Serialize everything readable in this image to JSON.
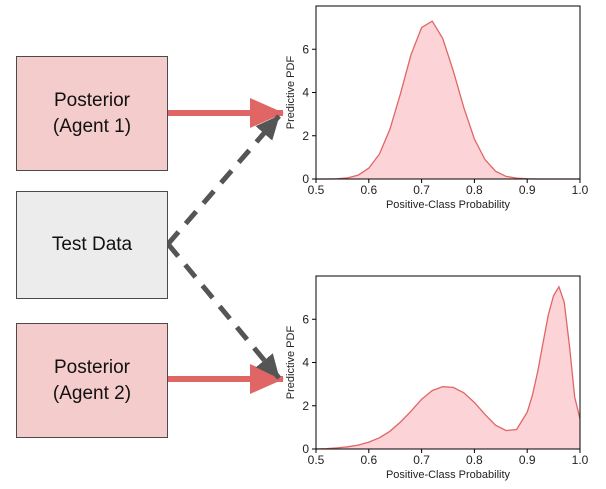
{
  "boxes": {
    "posterior1": {
      "line1": "Posterior",
      "line2": "(Agent 1)"
    },
    "test_data": {
      "label": "Test Data"
    },
    "posterior2": {
      "line1": "Posterior",
      "line2": "(Agent 2)"
    }
  },
  "colors": {
    "posterior_fill": "#f4cccc",
    "test_data_fill": "#ececec",
    "solid_arrow": "#e06666",
    "dashed_arrow": "#555555",
    "curve_line": "#e06666",
    "curve_fill": "#fcd3d6"
  },
  "chart_data": [
    {
      "type": "area",
      "xlabel": "Positive-Class Probability",
      "ylabel": "Predictive PDF",
      "xlim": [
        0.5,
        1.0
      ],
      "ylim": [
        0,
        8
      ],
      "xticks": [
        "0.5",
        "0.6",
        "0.7",
        "0.8",
        "0.9",
        "1.0"
      ],
      "yticks": [
        "0",
        "2",
        "4",
        "6"
      ],
      "grid": false,
      "series": [
        {
          "x": [
            0.5,
            0.52,
            0.54,
            0.56,
            0.58,
            0.6,
            0.62,
            0.64,
            0.66,
            0.68,
            0.7,
            0.72,
            0.74,
            0.76,
            0.78,
            0.8,
            0.82,
            0.84,
            0.86,
            0.88,
            0.9,
            0.92,
            0.94,
            0.96,
            0.98,
            1.0
          ],
          "y": [
            0.0,
            0.0,
            0.01,
            0.05,
            0.18,
            0.5,
            1.15,
            2.3,
            3.95,
            5.75,
            7.0,
            7.3,
            6.5,
            5.0,
            3.3,
            1.85,
            0.9,
            0.36,
            0.12,
            0.04,
            0.01,
            0.0,
            0.0,
            0.0,
            0.0,
            0.0
          ]
        }
      ]
    },
    {
      "type": "area",
      "xlabel": "Positive-Class Probability",
      "ylabel": "Predictive PDF",
      "xlim": [
        0.5,
        1.0
      ],
      "ylim": [
        0,
        8
      ],
      "xticks": [
        "0.5",
        "0.6",
        "0.7",
        "0.8",
        "0.9",
        "1.0"
      ],
      "yticks": [
        "0",
        "2",
        "4",
        "6"
      ],
      "grid": false,
      "series": [
        {
          "x": [
            0.5,
            0.52,
            0.54,
            0.56,
            0.58,
            0.6,
            0.62,
            0.64,
            0.66,
            0.68,
            0.7,
            0.72,
            0.74,
            0.76,
            0.78,
            0.8,
            0.82,
            0.84,
            0.86,
            0.88,
            0.9,
            0.91,
            0.92,
            0.93,
            0.94,
            0.95,
            0.96,
            0.97,
            0.98,
            0.99,
            1.0
          ],
          "y": [
            0.0,
            0.02,
            0.05,
            0.1,
            0.18,
            0.32,
            0.52,
            0.82,
            1.25,
            1.75,
            2.3,
            2.7,
            2.88,
            2.85,
            2.6,
            2.15,
            1.6,
            1.1,
            0.85,
            0.9,
            1.7,
            2.5,
            3.6,
            4.9,
            6.2,
            7.1,
            7.5,
            6.8,
            4.8,
            2.4,
            1.4
          ]
        }
      ]
    }
  ]
}
